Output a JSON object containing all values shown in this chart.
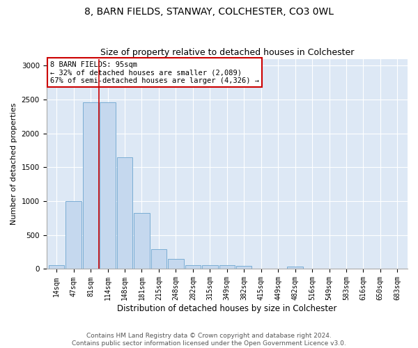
{
  "title1": "8, BARN FIELDS, STANWAY, COLCHESTER, CO3 0WL",
  "title2": "Size of property relative to detached houses in Colchester",
  "xlabel": "Distribution of detached houses by size in Colchester",
  "ylabel": "Number of detached properties",
  "categories": [
    "14sqm",
    "47sqm",
    "81sqm",
    "114sqm",
    "148sqm",
    "181sqm",
    "215sqm",
    "248sqm",
    "282sqm",
    "315sqm",
    "349sqm",
    "382sqm",
    "415sqm",
    "449sqm",
    "482sqm",
    "516sqm",
    "549sqm",
    "583sqm",
    "616sqm",
    "650sqm",
    "683sqm"
  ],
  "values": [
    55,
    1000,
    2460,
    2460,
    1650,
    830,
    290,
    145,
    55,
    55,
    55,
    45,
    0,
    0,
    40,
    0,
    0,
    0,
    0,
    0,
    0
  ],
  "bar_color": "#c5d8ee",
  "bar_edgecolor": "#7aadd4",
  "vline_color": "#cc0000",
  "vline_pos": 2.5,
  "annotation_text": "8 BARN FIELDS: 95sqm\n← 32% of detached houses are smaller (2,089)\n67% of semi-detached houses are larger (4,326) →",
  "annotation_box_facecolor": "#ffffff",
  "annotation_box_edgecolor": "#cc0000",
  "ylim": [
    0,
    3100
  ],
  "yticks": [
    0,
    500,
    1000,
    1500,
    2000,
    2500,
    3000
  ],
  "plot_bg_color": "#dde8f5",
  "grid_color": "#ffffff",
  "title1_fontsize": 10,
  "title2_fontsize": 9,
  "tick_fontsize": 7,
  "ylabel_fontsize": 8,
  "xlabel_fontsize": 8.5,
  "annot_fontsize": 7.5,
  "footer_fontsize": 6.5,
  "footer": "Contains HM Land Registry data © Crown copyright and database right 2024.\nContains public sector information licensed under the Open Government Licence v3.0."
}
